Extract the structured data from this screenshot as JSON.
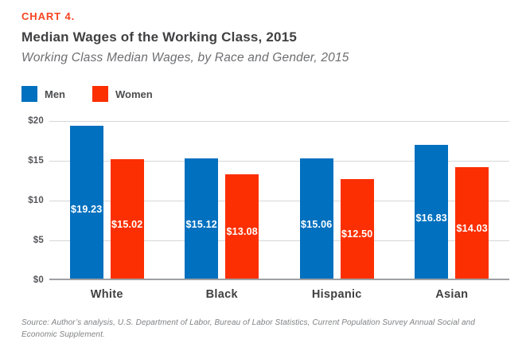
{
  "header": {
    "kicker": "CHART 4.",
    "title": "Median Wages of the Working Class, 2015",
    "subtitle": "Working Class Median Wages, by Race and Gender, 2015"
  },
  "legend": {
    "men": "Men",
    "women": "Women"
  },
  "chart_data": {
    "type": "bar",
    "title": "Median Wages of the Working Class, 2015",
    "categories": [
      "White",
      "Black",
      "Hispanic",
      "Asian"
    ],
    "series": [
      {
        "name": "Men",
        "color": "#0070bf",
        "values": [
          19.23,
          15.12,
          15.06,
          16.83
        ],
        "labels": [
          "$19.23",
          "$15.12",
          "$15.06",
          "$16.83"
        ]
      },
      {
        "name": "Women",
        "color": "#fb2f01",
        "values": [
          15.02,
          13.08,
          12.5,
          14.03
        ],
        "labels": [
          "$15.02",
          "$13.08",
          "$12.50",
          "$14.03"
        ]
      }
    ],
    "xlabel": "",
    "ylabel": "",
    "ylim": [
      0,
      20
    ],
    "yticks": [
      {
        "value": 20,
        "label": "$20"
      },
      {
        "value": 15,
        "label": "$15"
      },
      {
        "value": 10,
        "label": "$10"
      },
      {
        "value": 5,
        "label": "$5"
      },
      {
        "value": 0,
        "label": "$0"
      }
    ],
    "grid": true,
    "legend_position": "top-left"
  },
  "source": "Source: Author’s analysis, U.S. Department of Labor, Bureau of Labor Statistics, Current Population Survey Annual Social and Economic Supplement.",
  "colors": {
    "bar_blue": "#0070bf",
    "bar_red": "#fb2f01",
    "kicker_red": "#f6441f",
    "title_gray": "#414042",
    "subtitle_gray": "#6d6e71",
    "grid_gray": "#d6d7d8",
    "axis_gray": "#9ea0a3"
  }
}
